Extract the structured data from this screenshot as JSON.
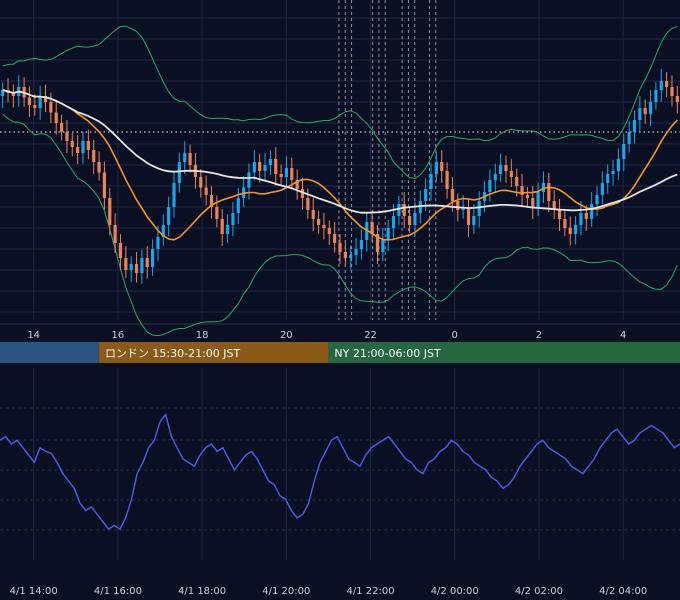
{
  "colors": {
    "background": "#0b0f24",
    "grid": "#1f2a44",
    "up_candle": "#21a4e6",
    "down_candle": "#e8845a",
    "bollinger": "#2fa866",
    "ma_fast": "#f0962e",
    "ma_slow": "#e6e6e6",
    "oscillator": "#4f5fe8",
    "dotted_level": "#c8c8c8",
    "tokyo_session": "#2a5580",
    "london_session": "#8a5a18",
    "ny_session": "#266640"
  },
  "chart_data": [
    {
      "type": "candlestick",
      "x_tick_labels": [
        "14",
        "16",
        "18",
        "20",
        "22",
        "0",
        "2",
        "4"
      ],
      "x_ticks_hours": [
        14,
        16,
        18,
        20,
        22,
        24,
        26,
        28
      ],
      "x_range_hours": [
        13.2,
        29.35
      ],
      "overlays": [
        "bollinger-bands",
        "moving-average-fast",
        "moving-average-slow"
      ],
      "horizontal_dotted_level": true,
      "vertical_dashed_marker_hours": [
        21.25,
        21.4,
        21.55,
        22.05,
        22.2,
        22.35,
        22.75,
        22.9,
        23.05,
        23.4,
        23.55
      ],
      "grid": true,
      "candle_closes": [
        0.6,
        0.58,
        0.56,
        0.62,
        0.55,
        0.5,
        0.48,
        0.56,
        0.52,
        0.45,
        0.38,
        0.32,
        0.26,
        0.22,
        0.18,
        0.26,
        0.2,
        0.12,
        0.05,
        -0.12,
        -0.3,
        -0.42,
        -0.52,
        -0.6,
        -0.56,
        -0.62,
        -0.52,
        -0.58,
        -0.46,
        -0.38,
        -0.3,
        -0.18,
        -0.02,
        0.12,
        0.18,
        0.1,
        0.02,
        -0.05,
        -0.1,
        -0.18,
        -0.26,
        -0.36,
        -0.3,
        -0.22,
        -0.12,
        -0.05,
        0.05,
        0.12,
        0.06,
        0.1,
        0.14,
        0.04,
        0.02,
        0.08,
        0.0,
        -0.06,
        -0.12,
        -0.2,
        -0.26,
        -0.3,
        -0.32,
        -0.36,
        -0.42,
        -0.48,
        -0.52,
        -0.5,
        -0.46,
        -0.4,
        -0.28,
        -0.36,
        -0.48,
        -0.4,
        -0.32,
        -0.24,
        -0.16,
        -0.24,
        -0.3,
        -0.22,
        -0.14,
        -0.06,
        0.04,
        0.12,
        0.06,
        -0.06,
        -0.14,
        -0.2,
        -0.18,
        -0.3,
        -0.24,
        -0.14,
        -0.08,
        0.0,
        0.04,
        0.1,
        0.06,
        0.02,
        -0.04,
        -0.1,
        -0.12,
        -0.18,
        -0.08,
        -0.02,
        -0.14,
        -0.2,
        -0.26,
        -0.32,
        -0.36,
        -0.3,
        -0.22,
        -0.26,
        -0.16,
        -0.1,
        -0.02,
        0.04,
        0.06,
        0.14,
        0.24,
        0.32,
        0.4,
        0.48,
        0.44,
        0.52,
        0.6,
        0.66,
        0.62,
        0.56,
        0.52
      ]
    },
    {
      "type": "line",
      "name": "",
      "x_tick_labels": [
        "4/1 14:00",
        "4/1 16:00",
        "4/1 18:00",
        "4/1 20:00",
        "4/1 22:00",
        "4/2 00:00",
        "4/2 02:00",
        "4/2 04:00"
      ],
      "x_ticks_hours": [
        14,
        16,
        18,
        20,
        22,
        24,
        26,
        28
      ],
      "x_range_hours": [
        13.2,
        29.35
      ],
      "y_range": [
        0,
        100
      ],
      "grid": true,
      "values": [
        62,
        64,
        60,
        62,
        58,
        54,
        50,
        58,
        56,
        55,
        50,
        44,
        40,
        36,
        28,
        24,
        26,
        22,
        18,
        14,
        16,
        14,
        20,
        30,
        44,
        50,
        58,
        62,
        72,
        76,
        64,
        58,
        52,
        50,
        48,
        54,
        58,
        60,
        56,
        58,
        52,
        46,
        50,
        54,
        56,
        52,
        46,
        40,
        38,
        32,
        30,
        24,
        20,
        22,
        28,
        40,
        50,
        56,
        62,
        64,
        58,
        52,
        50,
        48,
        54,
        58,
        60,
        62,
        64,
        60,
        56,
        52,
        50,
        46,
        44,
        50,
        52,
        56,
        58,
        62,
        60,
        56,
        54,
        50,
        48,
        46,
        42,
        40,
        36,
        38,
        42,
        48,
        52,
        56,
        60,
        62,
        58,
        56,
        54,
        52,
        48,
        46,
        44,
        48,
        52,
        58,
        62,
        66,
        68,
        64,
        60,
        62,
        66,
        68,
        70,
        68,
        66,
        62,
        58,
        60
      ]
    }
  ],
  "sessions": [
    {
      "label": "",
      "start_hour": 13.2,
      "end_hour": 15.55
    },
    {
      "label": "ロンドン 15:30-21:00 JST",
      "start_hour": 15.55,
      "end_hour": 21.0
    },
    {
      "label": "NY 21:00-06:00 JST",
      "start_hour": 21.0,
      "end_hour": 29.35
    }
  ]
}
